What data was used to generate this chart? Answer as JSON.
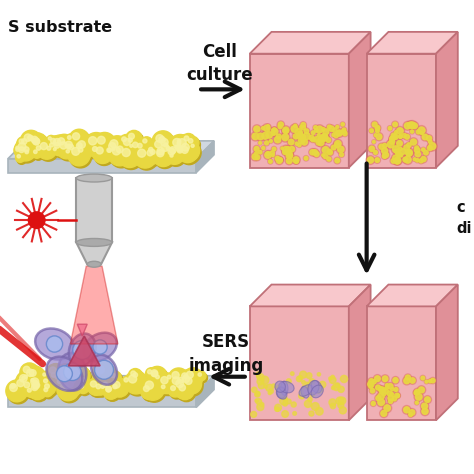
{
  "bg_color": "#ffffff",
  "gold_color": "#e8d840",
  "gold_shadow": "#c0a820",
  "gold_highlight": "#f8f2a0",
  "substrate_top": "#d0d8e0",
  "substrate_front": "#c0c8d0",
  "substrate_side": "#a8b4bc",
  "box_front": "#f0b0b5",
  "box_top": "#f8c8cc",
  "box_side": "#e09098",
  "box_edge": "#c07078",
  "nano_layer_color": "#e07060",
  "cell_purple": "#9988cc",
  "cell_outline": "#7766aa",
  "cell_inner": "#aabbee",
  "cell_red": "#cc4466",
  "laser_red": "#dd1111",
  "obj_gray": "#d0d0d0",
  "obj_mid": "#bbbbbb",
  "obj_dark": "#aaaaaa",
  "arrow_color": "#111111",
  "text_color": "#111111",
  "label_substrate": "S substrate",
  "label_cell_culture": "Cell\nculture",
  "label_sers": "SERS\nimaging",
  "label_diff": "c\ndi"
}
